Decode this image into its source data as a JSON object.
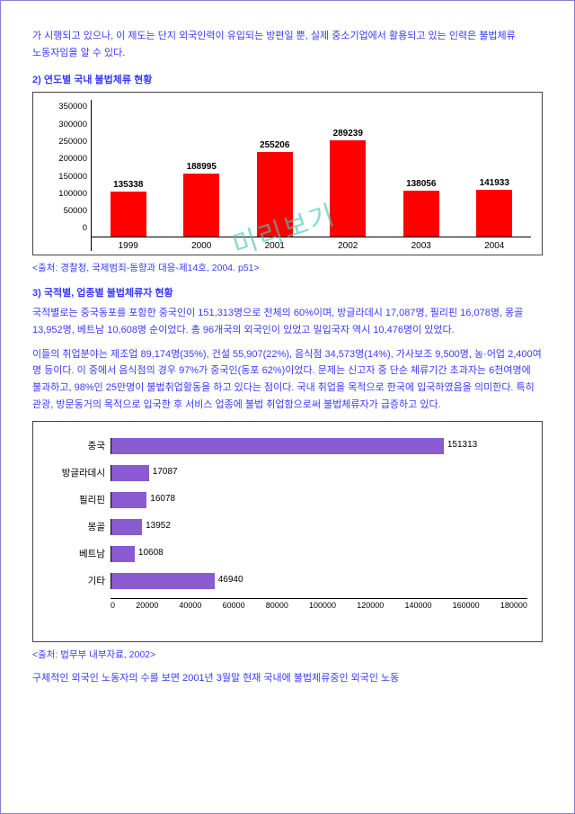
{
  "intro_para": "가 시행되고 있으나, 이 제도는 단지 외국인력이 유입되는 방편일 뿐, 실제 중소기업에서 활용되고 있는 인력은 불법체류 노동자임을 알 수 있다.",
  "heading1": "2) 연도별 국내 불법체류 현황",
  "yearly_chart": {
    "type": "bar",
    "categories": [
      "1999",
      "2000",
      "2001",
      "2002",
      "2003",
      "2004"
    ],
    "values": [
      135338,
      188995,
      255206,
      289239,
      138056,
      141933
    ],
    "bar_color": "#ff0000",
    "ymax": 350000,
    "ytick_step": 50000,
    "yticks": [
      "350000",
      "300000",
      "250000",
      "200000",
      "150000",
      "100000",
      "50000",
      "0"
    ],
    "background": "#ffffff",
    "border": "#444444",
    "label_fontsize": 10
  },
  "citation1": "<출처: 경찰청, 국제범죄-동향과 대응-제14호, 2004. p51>",
  "heading2": "3) 국적별, 업종별 불법체류자 현황",
  "para2a": "국적별로는 중국동포를 포함한 중국인이 151,313명으로 전체의 60%이며, 방글라데시 17,087명, 필리핀 16,078명, 몽골 13,952명, 베트남 10,608명 순이었다. 총 96개국의 외국인이 있었고 밀입국자 역시 10,476명이 있었다.",
  "para2b": "이들의 취업분야는 제조업 89,174명(35%), 건설 55,907(22%), 음식점 34,573명(14%), 가사보조 9,500명, 농·어업 2,400여 명 등이다. 이 중에서 음식점의 경우 97%가 중국인(동포 62%)이었다. 문제는 신고자 중 단순 체류기간 초과자는 6천여명에 불과하고, 98%인 25만명이 불법취업활동을 하고 있다는 점이다. 국내 취업을 목적으로 한국에 입국하였음을 의미한다. 특히 관광, 방문동거의 목적으로 입국한 후 서비스 업종에 불법 취업함으로써 불법체류자가 급증하고 있다.",
  "nat_chart": {
    "type": "hbar",
    "categories": [
      "중국",
      "방글라데시",
      "필리핀",
      "몽골",
      "베트남",
      "기타"
    ],
    "values": [
      151313,
      17087,
      16078,
      13952,
      10608,
      46940
    ],
    "bar_color": "#8a5ad0",
    "xmax": 180000,
    "xtick_step": 20000,
    "xticks": [
      "0",
      "20000",
      "40000",
      "60000",
      "80000",
      "100000",
      "120000",
      "140000",
      "160000",
      "180000"
    ],
    "background": "#ffffff",
    "border": "#444444"
  },
  "citation2": "<출처: 법무부 내부자료, 2002>",
  "para3": "구체적인 외국인 노동자의 수를 보면 2001년 3월말 현재 국내에 불법체류중인 외국인 노동",
  "watermark": "미리보기"
}
